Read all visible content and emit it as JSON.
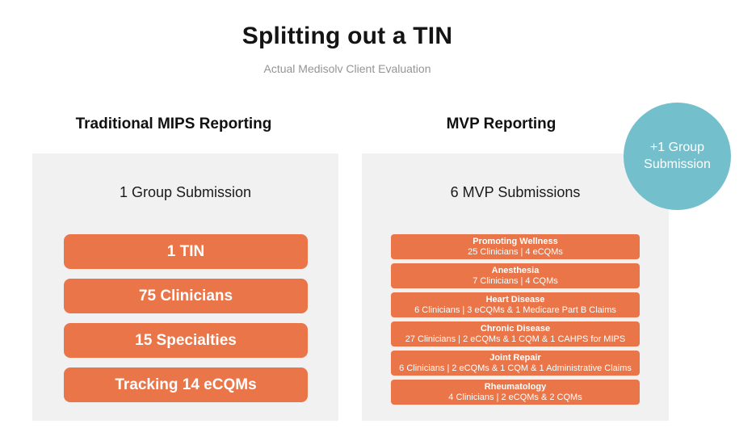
{
  "title": "Splitting out a TIN",
  "subtitle": "Actual Medisolv Client Evaluation",
  "left_column": {
    "header": "Traditional MIPS Reporting",
    "summary": "1 Group Submission",
    "boxes": [
      "1 TIN",
      "75 Clinicians",
      "15 Specialties",
      "Tracking 14 eCQMs"
    ]
  },
  "right_column": {
    "header": "MVP Reporting",
    "summary": "6 MVP Submissions",
    "boxes": [
      {
        "title": "Promoting Wellness",
        "detail": "25 Clinicians | 4 eCQMs"
      },
      {
        "title": "Anesthesia",
        "detail": "7 Clinicians | 4 CQMs"
      },
      {
        "title": "Heart Disease",
        "detail": "6 Clinicians | 3 eCQMs & 1 Medicare Part B Claims"
      },
      {
        "title": "Chronic Disease",
        "detail": "27 Clinicians | 2 eCQMs & 1 CQM & 1 CAHPS for MIPS"
      },
      {
        "title": "Joint Repair",
        "detail": "6 Clinicians | 2 eCQMs & 1 CQM & 1 Administrative Claims"
      },
      {
        "title": "Rheumatology",
        "detail": "4 Clinicians | 2 eCQMs & 2 CQMs"
      }
    ]
  },
  "badge": {
    "label": "+1 Group Submission"
  },
  "colors": {
    "orange": "#EA7548",
    "teal": "#74BFCC",
    "panel_gray": "#F1F1F2",
    "subtitle_gray": "#959595"
  }
}
